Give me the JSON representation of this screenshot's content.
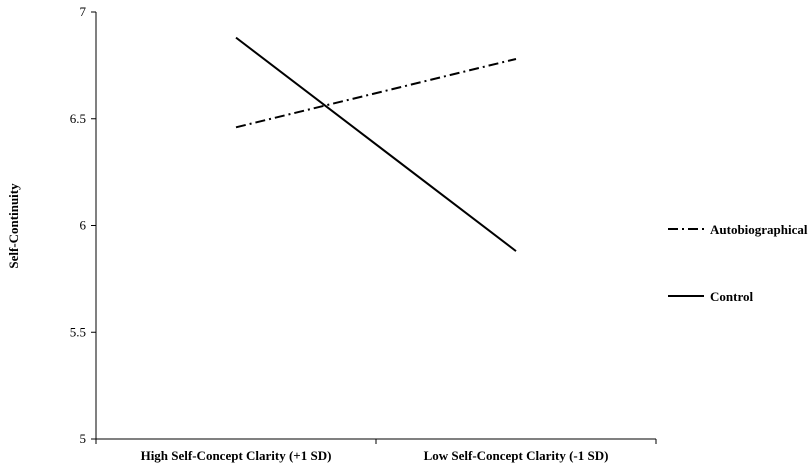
{
  "chart_data": {
    "type": "line",
    "title": "",
    "xlabel": "",
    "ylabel": "Self-Continuity",
    "categories": [
      "High Self-Concept Clarity (+1 SD)",
      "Low Self-Concept Clarity (-1 SD)"
    ],
    "ylim": [
      5,
      7
    ],
    "yticks": [
      5,
      5.5,
      6,
      6.5,
      7
    ],
    "grid": false,
    "legend_position": "right",
    "series": [
      {
        "name": "Autobiographical Memory",
        "values": [
          6.46,
          6.78
        ],
        "line_style": "dash-dot",
        "color": "#000000"
      },
      {
        "name": "Control",
        "values": [
          6.88,
          5.88
        ],
        "line_style": "solid",
        "color": "#000000"
      }
    ]
  }
}
